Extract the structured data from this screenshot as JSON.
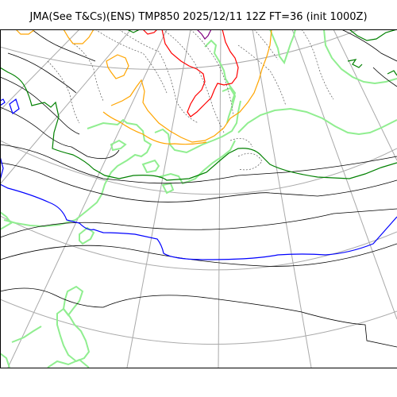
{
  "title": "JMA(See T&Cs)(ENS) TMP850 2025/12/11 12Z FT=36 (init 1000Z)",
  "map": {
    "colors": {
      "background": "#ffffff",
      "grid": "#a9a9a9",
      "coast": "#90ee90",
      "isotherm_default": "#000000",
      "isotherm_zero": "#0000ff",
      "isotherm_minus6": "#008000",
      "isotherm_minus12": "#ffa500",
      "isotherm_minus18": "#ff0000",
      "isotherm_minus24": "#800080"
    },
    "icons": [
      "lat-lon-grid",
      "coastline",
      "temperature-isotherm"
    ]
  }
}
